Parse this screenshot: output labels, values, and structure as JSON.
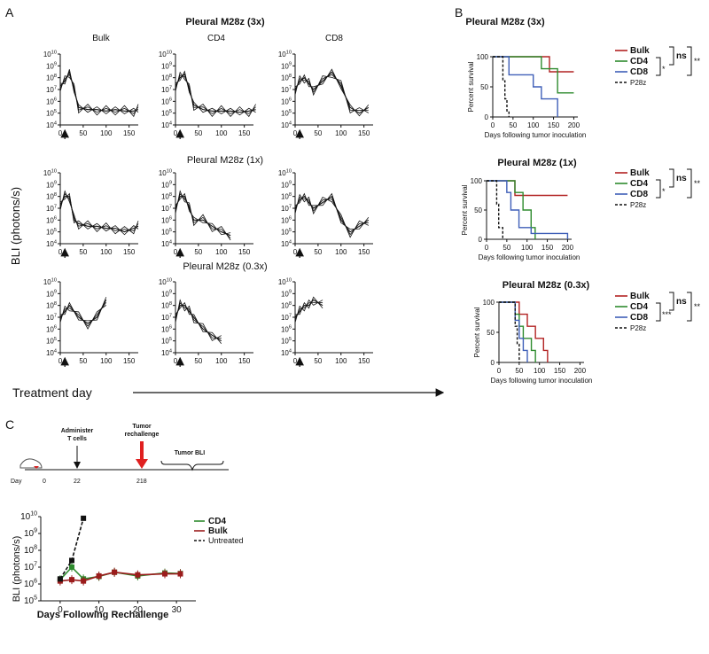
{
  "panel_labels": {
    "a": "A",
    "b": "B",
    "c": "C"
  },
  "panelA": {
    "rows": [
      {
        "title": "Pleural M28z (3x)"
      },
      {
        "title": "Pleural M28z (1x)"
      },
      {
        "title": "Pleural M28z (0.3x)"
      }
    ],
    "column_headers": [
      "Bulk",
      "CD4",
      "CD8"
    ],
    "y_axis_label": "BLI (photons/s)",
    "y_ticks": [
      "10^4",
      "10^5",
      "10^6",
      "10^7",
      "10^8",
      "10^9",
      "10^10"
    ],
    "x_ticks": [
      "0",
      "50",
      "100",
      "150"
    ],
    "treatment_label": "Treatment day"
  },
  "panelB": {
    "xlabel": "Days following tumor inoculation",
    "ylabel": "Percent survival",
    "y_ticks": [
      "0",
      "50",
      "100"
    ],
    "x_ticks": [
      "0",
      "50",
      "100",
      "150",
      "200"
    ],
    "legend": [
      "Bulk",
      "CD4",
      "CD8",
      "P28z"
    ],
    "sig": {
      "ns": "ns",
      "double": "**",
      "single": "*",
      "triple": "***"
    },
    "colors": {
      "Bulk": "#b22222",
      "CD4": "#2e8b2e",
      "CD8": "#3f5fb8",
      "P28z": "#111111"
    }
  },
  "panelC": {
    "timeline": {
      "day_label": "Day",
      "day0": "0",
      "day22": "22",
      "day218": "218",
      "administer": "Administer T cells",
      "rechallenge": "Tumor rechallenge",
      "tumor_bli": "Tumor BLI"
    },
    "ylabel": "BLI (photons/s)",
    "xlabel": "Days Following Rechallenge",
    "y_ticks": [
      "10^5",
      "10^6",
      "10^7",
      "10^8",
      "10^9",
      "10^10"
    ],
    "x_ticks": [
      "0",
      "10",
      "20",
      "30"
    ],
    "legend": [
      "CD4",
      "Bulk",
      "Untreated"
    ]
  },
  "chart_data": [
    {
      "type": "line",
      "title": "Pleural M28z (3x)",
      "ylabel": "BLI (photons/s)",
      "y_scale": "log",
      "ylim": [
        10000,
        10000000000
      ],
      "xlim": [
        0,
        170
      ],
      "series": [
        {
          "name": "Bulk",
          "x": [
            0,
            10,
            20,
            30,
            40,
            60,
            80,
            100,
            120,
            140,
            160,
            170
          ],
          "y": [
            20000000,
            50000000,
            300000000,
            10000000,
            300000,
            200000,
            200000,
            150000,
            200000,
            150000,
            150000,
            200000
          ]
        },
        {
          "name": "CD4",
          "x": [
            0,
            10,
            20,
            30,
            40,
            60,
            80,
            100,
            120,
            140,
            160,
            175
          ],
          "y": [
            20000000,
            100000000,
            200000000,
            10000000,
            500000,
            200000,
            150000,
            150000,
            150000,
            120000,
            150000,
            200000
          ]
        },
        {
          "name": "CD8",
          "x": [
            0,
            10,
            20,
            30,
            40,
            60,
            80,
            100,
            120,
            140,
            160
          ],
          "y": [
            10000000,
            50000000,
            100000000,
            30000000,
            10000000,
            50000000,
            300000000,
            20000000,
            300000,
            100000,
            300000
          ]
        }
      ]
    },
    {
      "type": "line",
      "title": "Pleural M28z (1x)",
      "ylabel": "BLI (photons/s)",
      "y_scale": "log",
      "ylim": [
        10000,
        10000000000
      ],
      "xlim": [
        0,
        170
      ],
      "series": [
        {
          "name": "Bulk",
          "x": [
            0,
            10,
            20,
            30,
            40,
            60,
            80,
            100,
            120,
            140,
            160,
            170
          ],
          "y": [
            20000000,
            100000000,
            100000000,
            1000000,
            500000,
            300000,
            300000,
            200000,
            200000,
            100000,
            200000,
            300000
          ]
        },
        {
          "name": "CD4",
          "x": [
            0,
            10,
            20,
            30,
            40,
            60,
            80,
            100,
            120
          ],
          "y": [
            10000000,
            100000000,
            100000000,
            10000000,
            1000000,
            1000000,
            300000,
            100000,
            50000
          ]
        },
        {
          "name": "CD8",
          "x": [
            0,
            10,
            20,
            30,
            40,
            60,
            80,
            100,
            120,
            140,
            160
          ],
          "y": [
            10000000,
            50000000,
            100000000,
            30000000,
            10000000,
            30000000,
            100000000,
            1000000,
            100000,
            300000,
            1000000
          ]
        }
      ]
    },
    {
      "type": "line",
      "title": "Pleural M28z (0.3x)",
      "ylabel": "BLI (photons/s)",
      "y_scale": "log",
      "ylim": [
        10000,
        10000000000
      ],
      "xlim": [
        0,
        170
      ],
      "series": [
        {
          "name": "Bulk",
          "x": [
            0,
            10,
            20,
            40,
            60,
            80,
            100
          ],
          "y": [
            10000000,
            30000000,
            100000000,
            10000000,
            3000000,
            10000000,
            300000000
          ]
        },
        {
          "name": "CD4",
          "x": [
            0,
            10,
            20,
            30,
            40,
            60,
            80,
            100
          ],
          "y": [
            10000000,
            100000000,
            100000000,
            30000000,
            10000000,
            1000000,
            300000,
            100000
          ]
        },
        {
          "name": "CD8",
          "x": [
            0,
            10,
            20,
            30,
            40,
            60
          ],
          "y": [
            10000000,
            30000000,
            100000000,
            100000000,
            300000000,
            100000000
          ]
        }
      ]
    },
    {
      "type": "line",
      "title": "Pleural M28z (3x)",
      "xlabel": "Days following tumor inoculation",
      "ylabel": "Percent survival",
      "xlim": [
        0,
        210
      ],
      "ylim": [
        0,
        100
      ],
      "series": [
        {
          "name": "Bulk",
          "x": [
            0,
            140,
            140,
            200
          ],
          "y": [
            100,
            100,
            75,
            75
          ]
        },
        {
          "name": "CD4",
          "x": [
            0,
            120,
            120,
            160,
            160,
            200
          ],
          "y": [
            100,
            100,
            80,
            80,
            40,
            40
          ]
        },
        {
          "name": "CD8",
          "x": [
            0,
            40,
            40,
            100,
            100,
            120,
            120,
            160,
            160
          ],
          "y": [
            100,
            100,
            70,
            70,
            50,
            50,
            30,
            30,
            0
          ]
        },
        {
          "name": "P28z",
          "x": [
            0,
            25,
            25,
            30,
            30,
            35,
            35,
            40,
            40
          ],
          "y": [
            100,
            100,
            60,
            60,
            30,
            30,
            10,
            10,
            0
          ]
        }
      ]
    },
    {
      "type": "line",
      "title": "Pleural M28z (1x)",
      "xlabel": "Days following tumor inoculation",
      "ylabel": "Percent survival",
      "xlim": [
        0,
        210
      ],
      "ylim": [
        0,
        100
      ],
      "series": [
        {
          "name": "Bulk",
          "x": [
            0,
            70,
            70,
            200
          ],
          "y": [
            100,
            100,
            75,
            75
          ]
        },
        {
          "name": "CD4",
          "x": [
            0,
            70,
            70,
            90,
            90,
            110,
            110,
            120,
            120
          ],
          "y": [
            100,
            100,
            80,
            80,
            50,
            50,
            20,
            20,
            0
          ]
        },
        {
          "name": "CD8",
          "x": [
            0,
            50,
            50,
            60,
            60,
            80,
            80,
            110,
            110,
            200,
            200
          ],
          "y": [
            100,
            100,
            80,
            80,
            50,
            50,
            20,
            20,
            10,
            10,
            0
          ]
        },
        {
          "name": "P28z",
          "x": [
            0,
            25,
            25,
            30,
            30,
            40,
            40
          ],
          "y": [
            100,
            100,
            60,
            60,
            20,
            20,
            0
          ]
        }
      ]
    },
    {
      "type": "line",
      "title": "Pleural M28z (0.3x)",
      "xlabel": "Days following tumor inoculation",
      "ylabel": "Percent survival",
      "xlim": [
        0,
        210
      ],
      "ylim": [
        0,
        100
      ],
      "series": [
        {
          "name": "Bulk",
          "x": [
            0,
            50,
            50,
            70,
            70,
            90,
            90,
            110,
            110,
            120,
            120
          ],
          "y": [
            100,
            100,
            80,
            80,
            60,
            60,
            40,
            40,
            20,
            20,
            0
          ]
        },
        {
          "name": "CD4",
          "x": [
            0,
            40,
            40,
            50,
            50,
            60,
            60,
            80,
            80,
            90,
            90
          ],
          "y": [
            100,
            100,
            80,
            80,
            60,
            60,
            40,
            40,
            20,
            20,
            0
          ]
        },
        {
          "name": "CD8",
          "x": [
            0,
            40,
            40,
            50,
            50,
            60,
            60,
            70,
            70
          ],
          "y": [
            100,
            100,
            70,
            70,
            40,
            40,
            20,
            20,
            0
          ]
        },
        {
          "name": "P28z",
          "x": [
            0,
            40,
            40,
            45,
            45,
            50,
            50
          ],
          "y": [
            100,
            100,
            60,
            60,
            30,
            30,
            0
          ]
        }
      ]
    },
    {
      "type": "line",
      "xlabel": "Days Following Rechallenge",
      "ylabel": "BLI (photons/s)",
      "y_scale": "log",
      "ylim": [
        100000,
        10000000000
      ],
      "xlim": [
        -5,
        35
      ],
      "series": [
        {
          "name": "CD4",
          "x": [
            0,
            3,
            6,
            10,
            14,
            20,
            27,
            31
          ],
          "y": [
            1800000,
            10000000,
            2000000,
            2800000,
            5000000,
            3000000,
            4500000,
            4200000
          ]
        },
        {
          "name": "Bulk",
          "x": [
            0,
            3,
            6,
            10,
            14,
            20,
            27,
            31
          ],
          "y": [
            1500000,
            1800000,
            1500000,
            3000000,
            5000000,
            3500000,
            4000000,
            4000000
          ]
        },
        {
          "name": "Untreated",
          "x": [
            0,
            3,
            6
          ],
          "y": [
            2000000,
            25000000,
            8000000000
          ]
        }
      ]
    }
  ]
}
